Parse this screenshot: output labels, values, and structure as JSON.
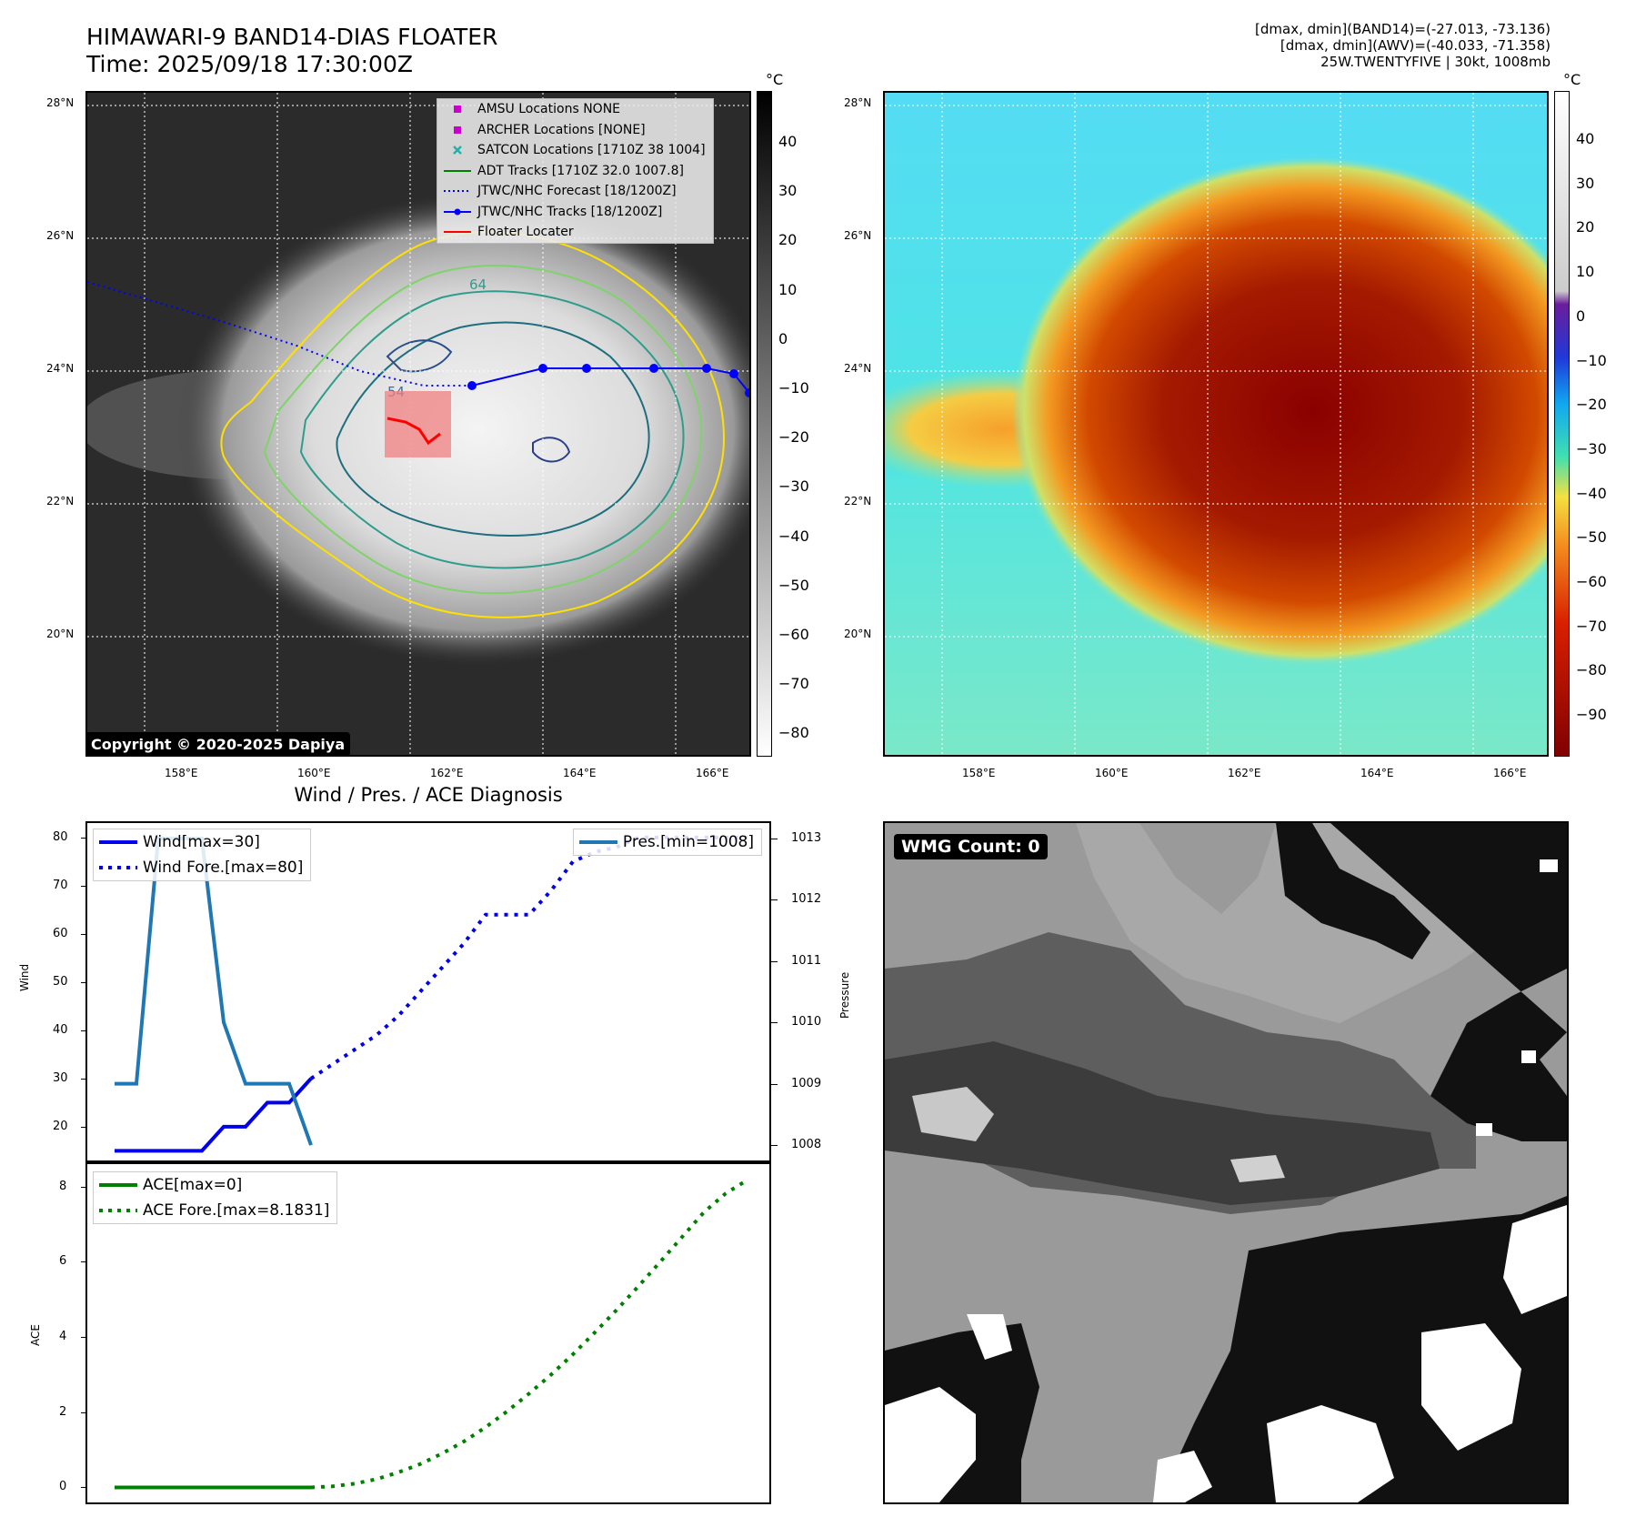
{
  "header": {
    "title_line1": "HIMAWARI-9 BAND14-DIAS FLOATER",
    "title_line2": "Time: 2025/09/18 17:30:00Z",
    "info_line1": "[dmax, dmin](BAND14)=(-27.013, -73.136)",
    "info_line2": "[dmax, dmin](AWV)=(-40.033, -71.358)",
    "info_line3": "25W.TWENTYFIVE | 30kt, 1008mb"
  },
  "map_left": {
    "lat_labels": [
      "28°N",
      "26°N",
      "24°N",
      "22°N",
      "20°N"
    ],
    "lon_labels": [
      "158°E",
      "160°E",
      "162°E",
      "164°E",
      "166°E"
    ],
    "contour_labels": [
      "64",
      "54"
    ],
    "copyright": "Copyright © 2020-2025 Dapiya",
    "colorbar_unit": "°C",
    "colorbar_ticks": [
      "40",
      "30",
      "20",
      "10",
      "0",
      "−10",
      "−20",
      "−30",
      "−40",
      "−50",
      "−60",
      "−70",
      "−80"
    ],
    "legend": [
      {
        "label": "AMSU Locations NONE",
        "symbol": "square",
        "color": "#cc00cc"
      },
      {
        "label": "ARCHER Locations [NONE]",
        "symbol": "square",
        "color": "#cc00cc"
      },
      {
        "label": "SATCON Locations [1710Z 38 1004]",
        "symbol": "x",
        "color": "#20b2aa"
      },
      {
        "label": "ADT Tracks [1710Z 32.0 1007.8]",
        "symbol": "line",
        "color": "#008000"
      },
      {
        "label": "JTWC/NHC Forecast [18/1200Z]",
        "symbol": "dotted",
        "color": "#0000ff"
      },
      {
        "label": "JTWC/NHC Tracks [18/1200Z]",
        "symbol": "linedot",
        "color": "#0000ff"
      },
      {
        "label": "Floater Locater",
        "symbol": "line",
        "color": "#ff0000"
      }
    ],
    "track_color": "#0000ff",
    "floater_color": "#ff0000"
  },
  "map_right": {
    "lat_labels": [
      "28°N",
      "26°N",
      "24°N",
      "22°N",
      "20°N"
    ],
    "lon_labels": [
      "158°E",
      "160°E",
      "162°E",
      "164°E",
      "166°E"
    ],
    "colorbar_unit": "°C",
    "colorbar_ticks": [
      "40",
      "30",
      "20",
      "10",
      "0",
      "−10",
      "−20",
      "−30",
      "−40",
      "−50",
      "−60",
      "−70",
      "−80",
      "−90"
    ]
  },
  "wmg": {
    "badge": "WMG Count: 0"
  },
  "chart_data": [
    {
      "type": "line",
      "title": "Wind / Pres. / ACE Diagnosis",
      "ylabel": "Wind",
      "ylabel_right": "Pressure",
      "ylim": [
        13,
        83
      ],
      "ylim_right": [
        1007.75,
        1013.25
      ],
      "yticks": [
        "80",
        "70",
        "60",
        "50",
        "40",
        "30",
        "20"
      ],
      "yticks_right": [
        "1013",
        "1012",
        "1011",
        "1010",
        "1009",
        "1008"
      ],
      "x": [
        0,
        1,
        2,
        3,
        4,
        5,
        6,
        7,
        8,
        9,
        10,
        11,
        12,
        13,
        14,
        15,
        16,
        17,
        18,
        19,
        20,
        21,
        22,
        23,
        24,
        25,
        26,
        27,
        28,
        29
      ],
      "series": [
        {
          "name": "Wind[max=30]",
          "axis": "left",
          "style": "solid",
          "color": "#0000ee",
          "x": [
            0,
            1,
            2,
            3,
            4,
            5,
            6,
            7,
            8,
            9
          ],
          "values": [
            15,
            15,
            15,
            15,
            15,
            20,
            20,
            25,
            25,
            30
          ]
        },
        {
          "name": "Wind Fore.[max=80]",
          "axis": "left",
          "style": "dotted",
          "color": "#0000ee",
          "x": [
            9,
            10,
            11,
            12,
            13,
            14,
            15,
            16,
            17,
            18,
            19,
            20,
            21,
            22,
            23,
            24,
            25,
            26,
            27,
            28,
            29
          ],
          "values": [
            30,
            33,
            36,
            39,
            43,
            48,
            53,
            58,
            64,
            64,
            64,
            69,
            75,
            77,
            78,
            80,
            80,
            80,
            80,
            80,
            80
          ]
        },
        {
          "name": "Pres.[min=1008]",
          "axis": "right",
          "style": "solid",
          "color": "#1f77b4",
          "x": [
            0,
            1,
            2,
            3,
            4,
            5,
            6,
            7,
            8,
            9
          ],
          "values": [
            1009,
            1009,
            1013,
            1013,
            1013,
            1010,
            1009,
            1009,
            1009,
            1008
          ]
        }
      ],
      "series_ghost": {
        "name": "",
        "axis": "right",
        "style": "dotted",
        "color": "#c8c8f0",
        "x": [
          25,
          26,
          27,
          28,
          29
        ],
        "values": [
          1013,
          1013,
          1013,
          1013,
          1013
        ]
      }
    },
    {
      "type": "line",
      "ylabel": "ACE",
      "ylim": [
        -0.4,
        8.6
      ],
      "yticks": [
        "8",
        "6",
        "4",
        "2",
        "0"
      ],
      "series": [
        {
          "name": "ACE[max=0]",
          "style": "solid",
          "color": "#008000",
          "x": [
            0,
            1,
            2,
            3,
            4,
            5,
            6,
            7,
            8,
            9
          ],
          "values": [
            0,
            0,
            0,
            0,
            0,
            0,
            0,
            0,
            0,
            0
          ]
        },
        {
          "name": "ACE Fore.[max=8.1831]",
          "style": "dotted",
          "color": "#008000",
          "x": [
            9,
            10,
            11,
            12,
            13,
            14,
            15,
            16,
            17,
            18,
            19,
            20,
            21,
            22,
            23,
            24,
            25,
            26,
            27,
            28,
            29
          ],
          "values": [
            0,
            0.03,
            0.1,
            0.22,
            0.4,
            0.62,
            0.9,
            1.22,
            1.6,
            2.03,
            2.5,
            3.0,
            3.54,
            4.12,
            4.72,
            5.35,
            6.0,
            6.66,
            7.32,
            7.82,
            8.18
          ]
        }
      ]
    }
  ]
}
